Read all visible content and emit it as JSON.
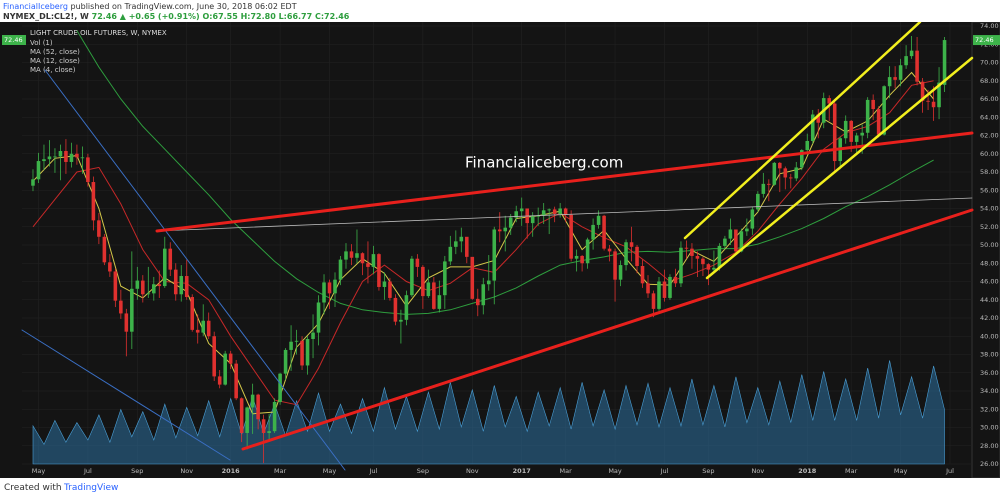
{
  "header": {
    "publisher": "FinancialIceberg",
    "published": "published on TradingView.com, June 30, 2018 06:02 EDT",
    "symbol": "NYMEX_DL:CL2!, W",
    "last": "72.46",
    "change": "▲ +0.65 (+0.91%)",
    "ohlc": "O:67.55 H:72.80 L:66.77 C:72.46"
  },
  "footer": {
    "created": "Created with",
    "brand": "TradingView"
  },
  "chart_data": {
    "type": "candlestick",
    "title": "LIGHT CRUDE OIL FUTURES, W, NYMEX",
    "annotation": "Financialiceberg.com",
    "grid": true,
    "up_color": "#3db34a",
    "down_color": "#e0312f",
    "candles": {
      "open": [
        56.5,
        57.2,
        59.2,
        59.4,
        59.7,
        59.7,
        60.3,
        59.1,
        60.0,
        59.6,
        59.6,
        56.9,
        52.7,
        50.9,
        48.1,
        47.1,
        43.9,
        42.5,
        40.5,
        45.2,
        46.1,
        44.6,
        44.7,
        45.7,
        45.5,
        49.6,
        47.3,
        44.6,
        46.6,
        44.3,
        40.7,
        40.4,
        41.7,
        40.0,
        35.6,
        34.7,
        38.1,
        37.0,
        33.2,
        29.4,
        32.2,
        33.6,
        30.9,
        29.4,
        29.6,
        32.8,
        35.9,
        38.5,
        39.4,
        39.5,
        36.8,
        39.7,
        40.4,
        43.7,
        45.9,
        44.7,
        46.2,
        48.4,
        49.3,
        48.6,
        49.1,
        48.0,
        47.6,
        49.0,
        45.4,
        46.0,
        44.2,
        41.6,
        41.8,
        44.5,
        48.5,
        47.6,
        44.4,
        45.9,
        43.0,
        44.5,
        48.2,
        49.8,
        50.4,
        50.9,
        48.7,
        44.1,
        43.4,
        45.7,
        46.1,
        51.7,
        51.5,
        51.9,
        53.0,
        53.7,
        54.0,
        52.4,
        53.2,
        53.2,
        53.8,
        53.9,
        53.4,
        54.0,
        53.3,
        48.5,
        48.8,
        48.0,
        50.6,
        52.2,
        53.2,
        49.6,
        49.3,
        46.2,
        47.8,
        50.3,
        49.8,
        47.7,
        45.8,
        44.7,
        43.0,
        46.0,
        44.2,
        46.5,
        45.8,
        49.7,
        49.6,
        48.8,
        48.5,
        47.9,
        47.3,
        47.5,
        49.9,
        50.7,
        51.7,
        49.3,
        51.5,
        51.8,
        53.9,
        55.6,
        56.7,
        56.6,
        59.0,
        58.4,
        57.4,
        57.3,
        58.5,
        60.4,
        61.4,
        64.3,
        63.4,
        66.1,
        65.5,
        59.2,
        61.7,
        63.6,
        61.3,
        62.0,
        62.3,
        65.9,
        64.9,
        62.1,
        67.4,
        68.4,
        68.1,
        69.7,
        70.7,
        71.3,
        67.9,
        65.8,
        65.7,
        65.1,
        67.55
      ],
      "high": [
        58.3,
        60.1,
        61.0,
        61.5,
        60.6,
        61.0,
        61.6,
        61.2,
        61.0,
        60.8,
        60.0,
        57.5,
        53.5,
        51.2,
        49.0,
        47.4,
        45.1,
        43.0,
        49.3,
        47.6,
        46.7,
        47.6,
        46.5,
        47.2,
        50.9,
        50.3,
        48.0,
        47.8,
        48.4,
        44.6,
        42.4,
        43.5,
        42.6,
        40.5,
        36.3,
        38.4,
        38.4,
        37.4,
        33.3,
        32.3,
        34.8,
        33.7,
        31.4,
        31.5,
        33.2,
        36.0,
        38.7,
        41.2,
        40.7,
        40.0,
        40.0,
        42.4,
        44.5,
        46.8,
        46.2,
        47.0,
        48.8,
        50.2,
        50.1,
        51.7,
        49.2,
        50.4,
        49.9,
        49.1,
        47.0,
        46.4,
        44.6,
        42.9,
        45.0,
        48.8,
        49.0,
        47.8,
        47.3,
        46.5,
        46.1,
        48.8,
        51.0,
        51.6,
        51.9,
        50.7,
        48.6,
        45.2,
        46.4,
        48.9,
        52.0,
        53.6,
        53.2,
        53.4,
        54.3,
        55.2,
        54.0,
        53.6,
        54.1,
        54.6,
        54.0,
        54.2,
        54.6,
        54.1,
        53.8,
        49.5,
        48.9,
        50.8,
        52.9,
        53.8,
        53.3,
        50.0,
        49.6,
        48.3,
        50.6,
        52.0,
        50.0,
        48.4,
        46.7,
        45.0,
        46.5,
        47.3,
        46.8,
        47.4,
        50.4,
        50.5,
        50.2,
        49.3,
        48.7,
        48.0,
        49.4,
        50.2,
        51.0,
        52.9,
        51.6,
        51.8,
        52.9,
        54.2,
        55.9,
        57.9,
        57.2,
        59.1,
        59.1,
        58.6,
        57.8,
        59.1,
        60.5,
        62.2,
        64.8,
        64.9,
        66.7,
        66.4,
        65.7,
        61.9,
        64.2,
        63.7,
        62.3,
        63.2,
        66.2,
        66.5,
        65.2,
        67.5,
        69.6,
        69.6,
        70.4,
        71.9,
        72.9,
        72.8,
        68.3,
        67.0,
        67.4,
        69.5,
        72.8
      ],
      "low": [
        55.9,
        56.8,
        58.2,
        58.6,
        57.9,
        57.1,
        57.8,
        58.5,
        58.8,
        57.8,
        56.4,
        51.6,
        50.1,
        47.8,
        46.5,
        43.2,
        41.9,
        37.8,
        38.6,
        44.0,
        43.7,
        44.2,
        43.9,
        44.2,
        45.3,
        46.6,
        43.9,
        43.8,
        44.0,
        40.5,
        39.2,
        40.0,
        39.7,
        35.1,
        34.3,
        34.6,
        36.4,
        33.0,
        28.4,
        27.6,
        29.3,
        29.8,
        26.1,
        28.7,
        29.4,
        32.5,
        35.2,
        36.2,
        38.0,
        36.3,
        35.8,
        37.6,
        39.0,
        42.4,
        43.0,
        43.2,
        45.6,
        47.4,
        47.8,
        48.0,
        46.7,
        45.8,
        46.8,
        45.0,
        44.0,
        43.9,
        41.2,
        39.2,
        41.2,
        44.3,
        46.5,
        43.0,
        44.2,
        42.9,
        42.6,
        43.0,
        47.8,
        49.0,
        49.2,
        48.0,
        44.0,
        42.2,
        42.4,
        45.0,
        43.5,
        50.3,
        49.3,
        51.1,
        52.5,
        52.1,
        50.7,
        50.9,
        52.1,
        52.3,
        51.2,
        52.5,
        53.0,
        52.5,
        48.2,
        47.1,
        47.1,
        47.4,
        49.5,
        51.8,
        49.4,
        48.2,
        43.8,
        45.5,
        47.2,
        48.2,
        46.9,
        45.3,
        44.2,
        42.1,
        42.8,
        43.8,
        44.0,
        45.4,
        45.4,
        48.5,
        47.4,
        46.5,
        46.6,
        45.6,
        47.0,
        47.2,
        49.5,
        50.0,
        49.1,
        49.2,
        51.0,
        51.1,
        53.6,
        55.2,
        54.8,
        56.5,
        55.8,
        56.1,
        56.2,
        57.0,
        58.2,
        59.9,
        61.1,
        61.7,
        62.8,
        63.6,
        58.1,
        58.3,
        61.1,
        60.2,
        59.9,
        60.0,
        61.7,
        63.7,
        61.8,
        62.0,
        66.1,
        67.2,
        67.4,
        69.3,
        70.4,
        67.5,
        64.5,
        64.8,
        63.6,
        63.8,
        66.77
      ],
      "close": [
        57.2,
        59.2,
        59.4,
        59.7,
        59.7,
        60.3,
        59.1,
        60.0,
        59.6,
        59.6,
        56.9,
        52.7,
        50.9,
        48.1,
        47.1,
        43.9,
        42.5,
        40.5,
        45.2,
        46.1,
        44.6,
        44.7,
        45.7,
        45.5,
        49.6,
        47.3,
        44.6,
        46.6,
        44.3,
        40.7,
        40.4,
        41.7,
        40.0,
        35.6,
        34.7,
        38.1,
        37.0,
        33.2,
        29.4,
        32.2,
        33.6,
        30.9,
        29.4,
        29.6,
        32.8,
        35.9,
        38.5,
        39.4,
        39.5,
        36.8,
        39.7,
        40.4,
        43.7,
        45.9,
        44.7,
        46.2,
        48.4,
        49.3,
        48.6,
        49.1,
        48.0,
        47.6,
        49.0,
        45.4,
        46.0,
        44.2,
        41.6,
        41.8,
        44.5,
        48.5,
        47.6,
        44.4,
        45.9,
        43.0,
        44.5,
        48.2,
        49.8,
        50.4,
        50.9,
        48.7,
        44.1,
        43.4,
        45.7,
        46.1,
        51.7,
        51.5,
        51.9,
        53.0,
        53.7,
        54.0,
        52.4,
        53.2,
        53.2,
        53.8,
        53.9,
        53.4,
        54.0,
        53.3,
        48.5,
        48.8,
        48.0,
        50.6,
        52.2,
        53.2,
        49.6,
        49.3,
        46.2,
        47.8,
        50.3,
        49.8,
        47.7,
        45.8,
        44.7,
        43.0,
        46.0,
        44.2,
        46.5,
        45.8,
        49.7,
        49.6,
        48.8,
        48.5,
        47.9,
        47.3,
        47.5,
        49.9,
        50.7,
        51.7,
        49.3,
        51.5,
        51.8,
        53.9,
        55.6,
        56.7,
        56.6,
        59.0,
        58.4,
        57.4,
        57.3,
        58.5,
        60.4,
        61.4,
        64.3,
        63.4,
        66.1,
        65.5,
        59.2,
        61.7,
        63.6,
        61.3,
        62.0,
        62.3,
        65.9,
        64.9,
        62.1,
        67.4,
        68.4,
        68.1,
        69.7,
        70.7,
        71.3,
        67.9,
        65.8,
        65.7,
        65.1,
        67.8,
        72.46
      ]
    },
    "volume": {
      "name": "Vol (1)",
      "color": "#2b6f9e",
      "ylim": [
        0,
        100
      ],
      "x": [
        0,
        2,
        4,
        6,
        8,
        10,
        12,
        14,
        16,
        18,
        20,
        22,
        24,
        26,
        28,
        30,
        32,
        34,
        36,
        38,
        40,
        42,
        44,
        46,
        48,
        50,
        52,
        54,
        56,
        58,
        60,
        62,
        64,
        66,
        68,
        70,
        72,
        74,
        76,
        78,
        80,
        82,
        84,
        86,
        88,
        90,
        92,
        94,
        96,
        98,
        100,
        102,
        104,
        106,
        108,
        110,
        112,
        114,
        116,
        118,
        120,
        122,
        124,
        126,
        128,
        130,
        132,
        134,
        136,
        138,
        140,
        142,
        144,
        146,
        148,
        150,
        152,
        154,
        156,
        158,
        160,
        162,
        164,
        166
      ],
      "values": [
        35,
        18,
        40,
        20,
        38,
        22,
        45,
        20,
        50,
        25,
        48,
        22,
        55,
        24,
        52,
        26,
        58,
        25,
        60,
        27,
        62,
        28,
        55,
        26,
        58,
        30,
        65,
        30,
        55,
        28,
        60,
        30,
        70,
        32,
        62,
        30,
        66,
        32,
        75,
        34,
        68,
        30,
        72,
        34,
        62,
        30,
        66,
        35,
        70,
        32,
        75,
        35,
        68,
        32,
        72,
        36,
        74,
        34,
        70,
        35,
        78,
        36,
        72,
        34,
        80,
        38,
        70,
        36,
        76,
        38,
        82,
        40,
        85,
        40,
        78,
        40,
        88,
        42,
        95,
        45,
        80,
        42,
        90,
        50
      ]
    },
    "series": [
      {
        "name": "MA (52, close)",
        "color": "#2e9e3e",
        "x": [
          8,
          12,
          16,
          20,
          24,
          28,
          32,
          36,
          40,
          44,
          48,
          52,
          56,
          60,
          64,
          68,
          72,
          76,
          80,
          84,
          88,
          92,
          96,
          100,
          104,
          108,
          112,
          116,
          120,
          124,
          128,
          132,
          136,
          140,
          144,
          148,
          152,
          156,
          160,
          164
        ],
        "values": [
          73.5,
          69.5,
          66,
          63,
          60.5,
          58,
          55.5,
          52.8,
          50.5,
          48.2,
          46.3,
          44.8,
          43.6,
          42.9,
          42.6,
          42.4,
          42.5,
          42.9,
          43.6,
          44.3,
          45.3,
          46.6,
          47.8,
          48.3,
          48.7,
          49.2,
          49.3,
          49.2,
          49.4,
          49.6,
          49.6,
          50.1,
          50.9,
          51.8,
          52.9,
          54.2,
          55.3,
          56.6,
          58.0,
          59.3
        ]
      },
      {
        "name": "MA (12, close)",
        "color": "#c62828",
        "x": [
          0,
          4,
          8,
          12,
          16,
          20,
          24,
          28,
          32,
          36,
          40,
          44,
          48,
          52,
          56,
          60,
          64,
          68,
          72,
          76,
          80,
          84,
          88,
          92,
          96,
          100,
          104,
          108,
          112,
          116,
          120,
          124,
          128,
          132,
          136,
          140,
          144,
          148,
          152,
          156,
          160,
          164
        ],
        "values": [
          52,
          55,
          58,
          58.5,
          54.5,
          49.5,
          46,
          45.8,
          44,
          40,
          36.5,
          33,
          32.5,
          36.5,
          41.5,
          46,
          47.8,
          46,
          45,
          45.8,
          47.5,
          47,
          49.5,
          52.3,
          53.5,
          52,
          50.8,
          49.8,
          48,
          46,
          46.8,
          47.8,
          49.2,
          51.5,
          54.5,
          57.3,
          60.5,
          62.3,
          63,
          64.5,
          67.5,
          68.0
        ]
      },
      {
        "name": "MA (4, close)",
        "color": "#d4c84a",
        "x": [
          0,
          4,
          8,
          12,
          16,
          20,
          24,
          28,
          32,
          36,
          40,
          44,
          48,
          52,
          56,
          60,
          64,
          68,
          72,
          76,
          80,
          84,
          88,
          92,
          96,
          100,
          104,
          108,
          112,
          116,
          120,
          124,
          128,
          132,
          136,
          140,
          144,
          148,
          152,
          156,
          160,
          164
        ],
        "values": [
          57,
          59.5,
          59.8,
          54,
          45.5,
          44.2,
          46.4,
          44.9,
          39.2,
          37,
          31.5,
          31.7,
          38.8,
          41.4,
          46.2,
          48.5,
          46.9,
          43.3,
          46.4,
          47.6,
          47.6,
          48.3,
          52.9,
          53.2,
          53.7,
          49.5,
          51.6,
          48.5,
          45.7,
          45.6,
          49.4,
          48.2,
          50.9,
          53.6,
          57.8,
          58.4,
          63.8,
          62.4,
          63.6,
          66.4,
          68.9,
          66.0
        ]
      }
    ],
    "xlim": [
      -2,
      171
    ],
    "xticks": [
      {
        "value": 1,
        "label": "May"
      },
      {
        "value": 10,
        "label": "Jul"
      },
      {
        "value": 19,
        "label": "Sep"
      },
      {
        "value": 28,
        "label": "Nov"
      },
      {
        "value": 36,
        "label": "2016"
      },
      {
        "value": 45,
        "label": "Mar"
      },
      {
        "value": 54,
        "label": "May"
      },
      {
        "value": 62,
        "label": "Jul"
      },
      {
        "value": 71,
        "label": "Sep"
      },
      {
        "value": 80,
        "label": "Nov"
      },
      {
        "value": 89,
        "label": "2017"
      },
      {
        "value": 97,
        "label": "Mar"
      },
      {
        "value": 106,
        "label": "May"
      },
      {
        "value": 115,
        "label": "Jul"
      },
      {
        "value": 123,
        "label": "Sep"
      },
      {
        "value": 132,
        "label": "Nov"
      },
      {
        "value": 141,
        "label": "2018"
      },
      {
        "value": 149,
        "label": "Mar"
      },
      {
        "value": 158,
        "label": "May"
      },
      {
        "value": 167,
        "label": "Jul"
      }
    ],
    "ylim": [
      26,
      74
    ],
    "yticks": [
      {
        "value": 26,
        "label": "26.00"
      },
      {
        "value": 28,
        "label": "28.00"
      },
      {
        "value": 30,
        "label": "30.00"
      },
      {
        "value": 32,
        "label": "32.00"
      },
      {
        "value": 34,
        "label": "34.00"
      },
      {
        "value": 36,
        "label": "36.00"
      },
      {
        "value": 38,
        "label": "38.00"
      },
      {
        "value": 40,
        "label": "40.00"
      },
      {
        "value": 42,
        "label": "42.00"
      },
      {
        "value": 44,
        "label": "44.00"
      },
      {
        "value": 46,
        "label": "46.00"
      },
      {
        "value": 48,
        "label": "48.00"
      },
      {
        "value": 50,
        "label": "50.00"
      },
      {
        "value": 52,
        "label": "52.00"
      },
      {
        "value": 54,
        "label": "54.00"
      },
      {
        "value": 56,
        "label": "56.00"
      },
      {
        "value": 58,
        "label": "58.00"
      },
      {
        "value": 60,
        "label": "60.00"
      },
      {
        "value": 62,
        "label": "62.00"
      },
      {
        "value": 64,
        "label": "64.00"
      },
      {
        "value": 66,
        "label": "66.00"
      },
      {
        "value": 68,
        "label": "68.00"
      },
      {
        "value": 70,
        "label": "70.00"
      },
      {
        "value": 72,
        "label": "72.00"
      },
      {
        "value": 74,
        "label": "74.00"
      }
    ]
  }
}
